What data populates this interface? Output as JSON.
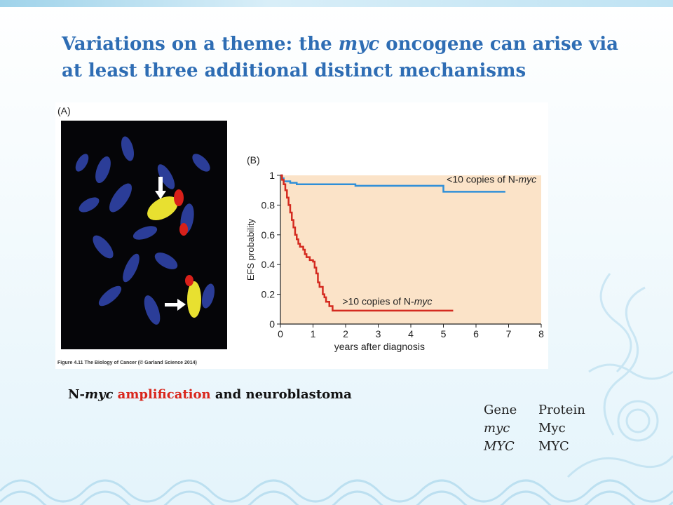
{
  "slide": {
    "title_part1": "Variations on a theme: the ",
    "title_italic": "myc",
    "title_part2": " oncogene can arise via at least three additional distinct mechanisms"
  },
  "figure": {
    "panel_a_label": "(A)",
    "panel_b_label": "(B)",
    "credit": "Figure 4.11 The Biology of Cancer (© Garland Science 2014)"
  },
  "caption": {
    "part1": "N-",
    "italic": "myc",
    "red": " amplification",
    "part2": " and neuroblastoma"
  },
  "gene_table": {
    "header": [
      "Gene",
      "Protein"
    ],
    "rows": [
      {
        "gene": "myc",
        "protein": "Myc"
      },
      {
        "gene": "MYC",
        "protein": "MYC"
      }
    ]
  },
  "chart_data": {
    "type": "line",
    "xlabel": "years after diagnosis",
    "ylabel": "EFS probability",
    "xlim": [
      0,
      8
    ],
    "ylim": [
      0,
      1
    ],
    "xticks": [
      "0",
      "1",
      "2",
      "3",
      "4",
      "5",
      "6",
      "7",
      "8"
    ],
    "yticks": [
      "0",
      "0.2",
      "0.4",
      "0.6",
      "0.8",
      "1"
    ],
    "background_color": "#fbe3c8",
    "series": [
      {
        "name_prefix": "<10 copies of N-",
        "name_italic": "myc",
        "color": "#2f8fd8",
        "x": [
          0,
          0.05,
          0.1,
          0.3,
          0.5,
          2.3,
          4.8,
          5.0,
          6.9
        ],
        "y": [
          1.0,
          0.98,
          0.96,
          0.95,
          0.94,
          0.93,
          0.93,
          0.89,
          0.89
        ]
      },
      {
        "name_prefix": ">10 copies of N-",
        "name_italic": "myc",
        "color": "#d42a1f",
        "x": [
          0,
          0.05,
          0.1,
          0.15,
          0.2,
          0.25,
          0.3,
          0.35,
          0.4,
          0.45,
          0.5,
          0.55,
          0.6,
          0.7,
          0.75,
          0.8,
          0.9,
          1.0,
          1.05,
          1.1,
          1.15,
          1.2,
          1.3,
          1.35,
          1.4,
          1.5,
          1.6,
          5.3
        ],
        "y": [
          1.0,
          0.97,
          0.94,
          0.9,
          0.85,
          0.8,
          0.75,
          0.7,
          0.65,
          0.6,
          0.57,
          0.54,
          0.52,
          0.5,
          0.47,
          0.45,
          0.43,
          0.42,
          0.38,
          0.34,
          0.28,
          0.25,
          0.2,
          0.18,
          0.15,
          0.12,
          0.09,
          0.09
        ]
      }
    ]
  }
}
